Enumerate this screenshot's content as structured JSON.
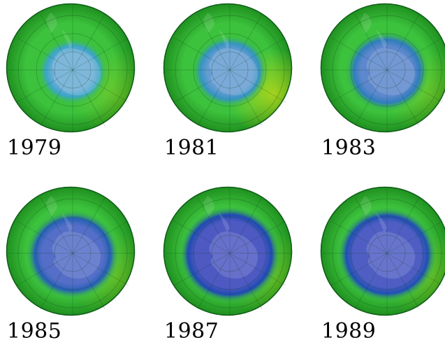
{
  "panels": [
    {
      "year": "1979",
      "hole_level": 0.1
    },
    {
      "year": "1981",
      "hole_level": 0.25
    },
    {
      "year": "1983",
      "hole_level": 0.45
    },
    {
      "year": "1985",
      "hole_level": 0.7
    },
    {
      "year": "1987",
      "hole_level": 0.9
    },
    {
      "year": "1989",
      "hole_level": 0.85
    }
  ],
  "colors": {
    "outer_green": "#1f8f1f",
    "mid_green": "#3cc23c",
    "cyan_ring": "#3fb0c8",
    "blue_ring": "#1b3fb0",
    "hole_purple": "#4a4fc0",
    "light_hole": "#6fb6d8",
    "yellow_green": "#b8d81a"
  }
}
